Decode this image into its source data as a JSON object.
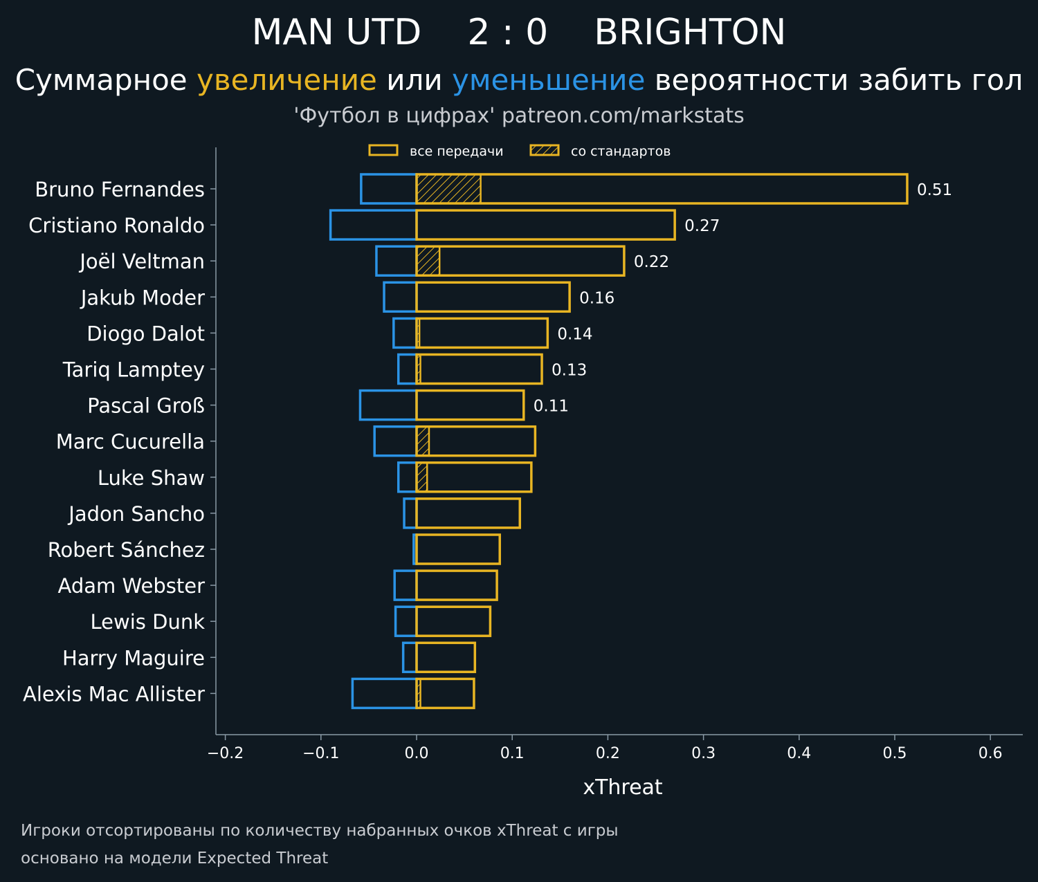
{
  "header": {
    "home_team": "MAN UTD",
    "score": "2 : 0",
    "away_team": "BRIGHTON",
    "subtitle_part1": "Суммарное ",
    "subtitle_increase": "увеличение",
    "subtitle_part2": " или ",
    "subtitle_decrease": "уменьшение",
    "subtitle_part3": " вероятности забить гол",
    "source": "'Футбол в цифрах' patreon.com/markstats"
  },
  "footnotes": {
    "line1": "Игроки отсортированы по количеству набранных очков xThreat с игры",
    "line2": "основано на модели Expected Threat"
  },
  "colors": {
    "background": "#0f1921",
    "increase": "#e8b523",
    "decrease": "#2b93e5",
    "axis": "#8a9aa6"
  },
  "chart_data": {
    "type": "bar",
    "orientation": "horizontal",
    "xlabel": "xThreat",
    "xlim": [
      -0.21,
      0.63
    ],
    "xticks": [
      -0.2,
      -0.1,
      0.0,
      0.1,
      0.2,
      0.3,
      0.4,
      0.5,
      0.6
    ],
    "xtick_labels": [
      "−0.2",
      "−0.1",
      "0.0",
      "0.1",
      "0.2",
      "0.3",
      "0.4",
      "0.5",
      "0.6"
    ],
    "legend": {
      "position": "top",
      "entries": [
        "все передачи",
        "со стандартов"
      ]
    },
    "categories": [
      "Bruno Fernandes",
      "Cristiano Ronaldo",
      "Joël Veltman",
      "Jakub Moder",
      "Diogo Dalot",
      "Tariq Lamptey",
      "Pascal Groß",
      "Marc Cucurella",
      "Luke Shaw",
      "Jadon Sancho",
      "Robert Sánchez",
      "Adam Webster",
      "Lewis Dunk",
      "Harry Maguire",
      "Alexis Mac Allister"
    ],
    "series": [
      {
        "name": "все передачи",
        "positive": [
          0.513,
          0.27,
          0.217,
          0.16,
          0.137,
          0.131,
          0.112,
          0.124,
          0.12,
          0.108,
          0.087,
          0.084,
          0.077,
          0.061,
          0.06
        ],
        "negative": [
          -0.058,
          -0.09,
          -0.042,
          -0.034,
          -0.024,
          -0.019,
          -0.059,
          -0.044,
          -0.019,
          -0.013,
          -0.003,
          -0.023,
          -0.022,
          -0.014,
          -0.067
        ]
      },
      {
        "name": "со стандартов",
        "positive": [
          0.067,
          0.0,
          0.024,
          0.0,
          0.003,
          0.004,
          0.0,
          0.013,
          0.011,
          0.0,
          0.0,
          0.0,
          0.0,
          0.0,
          0.004
        ]
      }
    ],
    "data_labels": [
      "0.51",
      "0.27",
      "0.22",
      "0.16",
      "0.14",
      "0.13",
      "0.11",
      "",
      "",
      "",
      "",
      "",
      "",
      "",
      ""
    ]
  }
}
